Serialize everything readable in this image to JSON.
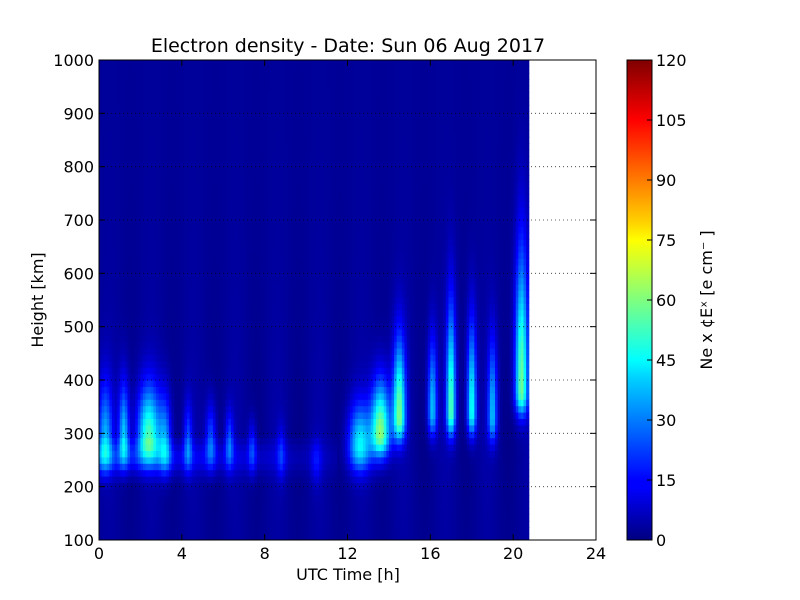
{
  "chart_data": {
    "type": "heatmap",
    "title": "Electron density - Date: Sun 06 Aug 2017",
    "xlabel": "UTC Time [h]",
    "ylabel": "Height [km]",
    "xlim": [
      0,
      24
    ],
    "ylim": [
      100,
      1000
    ],
    "x_ticks": [
      "0",
      "4",
      "8",
      "12",
      "16",
      "20",
      "24"
    ],
    "y_ticks": [
      "100",
      "200",
      "300",
      "400",
      "500",
      "600",
      "700",
      "800",
      "900",
      "1000"
    ],
    "grid": "dotted horizontal lines at y ticks",
    "data_coverage_hours": [
      0,
      20.75
    ],
    "colorbar": {
      "label": "Ne x ¢Eˣ  [e cm⁻ ]",
      "range": [
        0,
        120
      ],
      "ticks": [
        "0",
        "15",
        "30",
        "45",
        "60",
        "75",
        "90",
        "105",
        "120"
      ],
      "colormap": "jet"
    },
    "features": [
      {
        "t": 0.3,
        "h": 275,
        "v": 34,
        "w": 0.35,
        "top": 430
      },
      {
        "t": 1.2,
        "h": 285,
        "v": 38,
        "w": 0.25,
        "top": 430
      },
      {
        "t": 2.4,
        "h": 290,
        "v": 50,
        "w": 0.55,
        "top": 420
      },
      {
        "t": 3.2,
        "h": 270,
        "v": 30,
        "w": 0.3,
        "top": 400
      },
      {
        "t": 4.3,
        "h": 275,
        "v": 22,
        "w": 0.2,
        "top": 380
      },
      {
        "t": 5.4,
        "h": 280,
        "v": 24,
        "w": 0.25,
        "top": 380
      },
      {
        "t": 6.3,
        "h": 280,
        "v": 22,
        "w": 0.2,
        "top": 360
      },
      {
        "t": 7.4,
        "h": 270,
        "v": 18,
        "w": 0.2,
        "top": 340
      },
      {
        "t": 8.8,
        "h": 260,
        "v": 14,
        "w": 0.2,
        "top": 330
      },
      {
        "t": 10.5,
        "h": 250,
        "v": 10,
        "w": 0.25,
        "top": 300
      },
      {
        "t": 12.6,
        "h": 275,
        "v": 40,
        "w": 0.55,
        "top": 380
      },
      {
        "t": 13.6,
        "h": 300,
        "v": 60,
        "w": 0.45,
        "top": 430
      },
      {
        "t": 14.5,
        "h": 330,
        "v": 55,
        "w": 0.3,
        "top": 520
      },
      {
        "t": 16.1,
        "h": 340,
        "v": 36,
        "w": 0.22,
        "top": 520
      },
      {
        "t": 17.0,
        "h": 340,
        "v": 52,
        "w": 0.22,
        "top": 600
      },
      {
        "t": 18.0,
        "h": 340,
        "v": 46,
        "w": 0.22,
        "top": 560
      },
      {
        "t": 19.0,
        "h": 330,
        "v": 34,
        "w": 0.22,
        "top": 520
      },
      {
        "t": 20.4,
        "h": 380,
        "v": 55,
        "w": 0.3,
        "top": 720
      }
    ]
  }
}
